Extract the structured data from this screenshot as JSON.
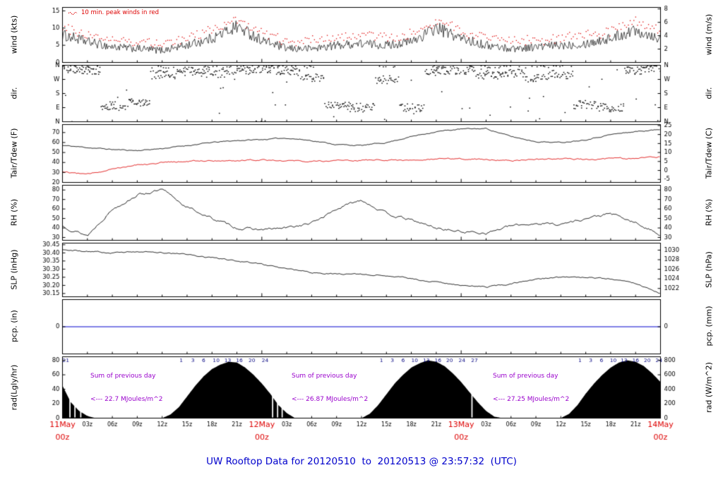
{
  "colors": {
    "red": "#dd0000",
    "blue_title": "#0000cc",
    "purple": "#9900cc",
    "navy": "#000080",
    "pcp_blue": "#0000cc",
    "series_black": "#000000"
  },
  "annotations": {
    "peak_note": "10 min. peak winds in red",
    "rad_sums": [
      {
        "label": "Sum of previous day",
        "value": "<--- 22.7 MJoules/m^2"
      },
      {
        "label": "Sum of previous day",
        "value": "<--- 26.87 MJoules/m^2"
      },
      {
        "label": "Sum of previous day",
        "value": "<--- 27.25 MJoules/m^2"
      }
    ],
    "rad_cum_ticks": [
      {
        "h": 0.4,
        "label": "21"
      },
      {
        "h": 14.3,
        "label": "1"
      },
      {
        "h": 15.7,
        "label": "3"
      },
      {
        "h": 17.0,
        "label": "6"
      },
      {
        "h": 18.5,
        "label": "10"
      },
      {
        "h": 19.9,
        "label": "13"
      },
      {
        "h": 21.3,
        "label": "16"
      },
      {
        "h": 22.8,
        "label": "20"
      },
      {
        "h": 24.4,
        "label": "24"
      },
      {
        "h": 38.4,
        "label": "1"
      },
      {
        "h": 39.7,
        "label": "3"
      },
      {
        "h": 41.0,
        "label": "6"
      },
      {
        "h": 42.4,
        "label": "10"
      },
      {
        "h": 43.8,
        "label": "13"
      },
      {
        "h": 45.2,
        "label": "16"
      },
      {
        "h": 46.6,
        "label": "20"
      },
      {
        "h": 48.1,
        "label": "24"
      },
      {
        "h": 49.6,
        "label": "27"
      },
      {
        "h": 62.3,
        "label": "1"
      },
      {
        "h": 63.6,
        "label": "3"
      },
      {
        "h": 64.9,
        "label": "6"
      },
      {
        "h": 66.3,
        "label": "10"
      },
      {
        "h": 67.6,
        "label": "13"
      },
      {
        "h": 69.0,
        "label": "16"
      },
      {
        "h": 70.4,
        "label": "20"
      },
      {
        "h": 71.8,
        "label": "24"
      }
    ]
  },
  "chart_data": {
    "type": "line",
    "title": "UW Rooftop Data for 20120510  to  20120513 @ 23:57:32  (UTC)",
    "x_axis": {
      "hours_span": 72,
      "minor_step_h": 3,
      "minor_labels": [
        "03z",
        "06z",
        "09z",
        "12z",
        "15z",
        "18z",
        "21z"
      ],
      "major": [
        {
          "h": 0,
          "date": "11May",
          "time": "00z"
        },
        {
          "h": 24,
          "date": "12May",
          "time": "00z"
        },
        {
          "h": 48,
          "date": "13May",
          "time": "00z"
        },
        {
          "h": 72,
          "date": "14May",
          "time": "00z"
        }
      ]
    },
    "panels": [
      {
        "id": "wind",
        "ylabel_left": "wind (kts)",
        "ylabel_right": "wind (m/s)",
        "range": [
          0,
          16
        ],
        "left_ticks": [
          {
            "v": 15,
            "label": "15"
          },
          {
            "v": 10,
            "label": "10"
          },
          {
            "v": 5,
            "label": "5"
          },
          {
            "v": 0,
            "label": "0"
          }
        ],
        "right_ticks": [
          {
            "v": 15.55,
            "label": "8"
          },
          {
            "v": 11.66,
            "label": "6"
          },
          {
            "v": 7.78,
            "label": "4"
          },
          {
            "v": 3.89,
            "label": "2"
          }
        ],
        "series": [
          {
            "name": "wind_speed_kts",
            "step_h": 3,
            "values": [
              8,
              6,
              4.5,
              4,
              3.5,
              5,
              7,
              10.5,
              6.5,
              4,
              4,
              5,
              5.5,
              5,
              6,
              10,
              7,
              5,
              4,
              4.5,
              5,
              5.5,
              7,
              9.5,
              7
            ]
          },
          {
            "name": "peak_wind_kts",
            "style": "peak_dots",
            "offset_kts": 2.2
          }
        ]
      },
      {
        "id": "dir",
        "ylabel_left": "dir.",
        "ylabel_right": "dir.",
        "range": [
          0,
          360
        ],
        "left_ticks": [
          {
            "v": 360,
            "label": "N"
          },
          {
            "v": 270,
            "label": "W"
          },
          {
            "v": 180,
            "label": "S"
          },
          {
            "v": 90,
            "label": "E"
          },
          {
            "v": 0,
            "label": "N"
          }
        ],
        "right_ticks": [
          {
            "v": 360,
            "label": "N"
          },
          {
            "v": 270,
            "label": "W"
          },
          {
            "v": 180,
            "label": "S"
          },
          {
            "v": 90,
            "label": "E"
          },
          {
            "v": 0,
            "label": "N"
          }
        ],
        "series": [
          {
            "name": "wind_direction_deg",
            "step_h": 3,
            "values": [
              340,
              330,
              100,
              120,
              300,
              320,
              310,
              330,
              340,
              320,
              280,
              100,
              90,
              270,
              90,
              320,
              330,
              300,
              310,
              280,
              300,
              110,
              90,
              330,
              340
            ]
          }
        ]
      },
      {
        "id": "temp",
        "ylabel_left": "Tair/Tdew (F)",
        "ylabel_right": "Tair/Tdew (C)",
        "range": [
          20,
          78
        ],
        "left_ticks": [
          {
            "v": 70,
            "label": "70"
          },
          {
            "v": 60,
            "label": "60"
          },
          {
            "v": 50,
            "label": "50"
          },
          {
            "v": 40,
            "label": "40"
          },
          {
            "v": 30,
            "label": "30"
          },
          {
            "v": 20,
            "label": "20"
          }
        ],
        "right_ticks": [
          {
            "v": 77,
            "label": "25"
          },
          {
            "v": 68,
            "label": "20"
          },
          {
            "v": 59,
            "label": "15"
          },
          {
            "v": 50,
            "label": "10"
          },
          {
            "v": 41,
            "label": "5"
          },
          {
            "v": 32,
            "label": "0"
          },
          {
            "v": 23,
            "label": "-5"
          }
        ],
        "series": [
          {
            "name": "air_temp_f",
            "step_h": 3,
            "values": [
              57,
              55,
              53,
              52,
              54,
              57,
              60,
              62,
              63,
              64.5,
              62,
              58,
              57,
              60,
              66,
              71,
              73.5,
              74,
              66,
              61,
              60,
              63,
              68,
              71,
              73
            ]
          },
          {
            "name": "dewpoint_f",
            "step_h": 3,
            "values": [
              31,
              28,
              34,
              38,
              40,
              41,
              42,
              42,
              43,
              42,
              41,
              42,
              42,
              43,
              42,
              43,
              44,
              43,
              42,
              43,
              44,
              43,
              44,
              44,
              46
            ]
          }
        ]
      },
      {
        "id": "rh",
        "ylabel_left": "RH (%)",
        "ylabel_right": "RH (%)",
        "range": [
          27,
          85
        ],
        "left_ticks": [
          {
            "v": 80,
            "label": "80"
          },
          {
            "v": 70,
            "label": "70"
          },
          {
            "v": 60,
            "label": "60"
          },
          {
            "v": 50,
            "label": "50"
          },
          {
            "v": 40,
            "label": "40"
          },
          {
            "v": 30,
            "label": "30"
          }
        ],
        "right_ticks": [
          {
            "v": 80,
            "label": "80"
          },
          {
            "v": 70,
            "label": "70"
          },
          {
            "v": 60,
            "label": "60"
          },
          {
            "v": 50,
            "label": "50"
          },
          {
            "v": 40,
            "label": "40"
          },
          {
            "v": 30,
            "label": "30"
          }
        ],
        "series": [
          {
            "name": "relative_humidity_pct",
            "step_h": 3,
            "values": [
              42,
              32,
              60,
              75,
              80,
              62,
              50,
              40,
              38,
              40,
              45,
              60,
              70,
              55,
              48,
              40,
              36,
              35,
              42,
              45,
              44,
              50,
              55,
              45,
              33
            ]
          }
        ]
      },
      {
        "id": "slp",
        "ylabel_left": "SLP (inHg)",
        "ylabel_right": "SLP (hPa)",
        "range": [
          30.13,
          30.46
        ],
        "left_ticks": [
          {
            "v": 30.45,
            "label": "30.45"
          },
          {
            "v": 30.4,
            "label": "30.40"
          },
          {
            "v": 30.35,
            "label": "30.35"
          },
          {
            "v": 30.3,
            "label": "30.30"
          },
          {
            "v": 30.25,
            "label": "30.25"
          },
          {
            "v": 30.2,
            "label": "30.20"
          },
          {
            "v": 30.15,
            "label": "30.15"
          }
        ],
        "right_ticks": [
          {
            "v": 30.417,
            "label": "1030"
          },
          {
            "v": 30.358,
            "label": "1028"
          },
          {
            "v": 30.299,
            "label": "1026"
          },
          {
            "v": 30.24,
            "label": "1024"
          },
          {
            "v": 30.181,
            "label": "1022"
          }
        ],
        "series": [
          {
            "name": "sea_level_pressure_inhg",
            "step_h": 3,
            "values": [
              30.42,
              30.41,
              30.4,
              30.41,
              30.4,
              30.39,
              30.37,
              30.35,
              30.33,
              30.3,
              30.28,
              30.27,
              30.27,
              30.26,
              30.24,
              30.22,
              30.2,
              30.19,
              30.21,
              30.24,
              30.25,
              30.25,
              30.24,
              30.21,
              30.15
            ]
          }
        ]
      },
      {
        "id": "pcp",
        "ylabel_left": "pcp. (in)",
        "ylabel_right": "pcp. (mm)",
        "range": [
          -1,
          1
        ],
        "left_ticks": [
          {
            "v": 0,
            "label": "0"
          }
        ],
        "right_ticks": [
          {
            "v": 0,
            "label": "0"
          }
        ],
        "series": [
          {
            "name": "precip_in",
            "style": "flat_zero"
          }
        ]
      },
      {
        "id": "rad",
        "ylabel_left": "rad(Lgly/hr)",
        "ylabel_right": "rad (W/m^2)",
        "range": [
          0,
          85
        ],
        "left_ticks": [
          {
            "v": 80,
            "label": "80"
          },
          {
            "v": 60,
            "label": "60"
          },
          {
            "v": 40,
            "label": "40"
          },
          {
            "v": 20,
            "label": "20"
          },
          {
            "v": 0,
            "label": "0"
          }
        ],
        "right_ticks": [
          {
            "v": 80,
            "label": "800"
          },
          {
            "v": 60,
            "label": "600"
          },
          {
            "v": 40,
            "label": "400"
          },
          {
            "v": 20,
            "label": "200"
          },
          {
            "v": 0,
            "label": "0"
          }
        ],
        "series": [
          {
            "name": "solar_radiation_lgly_hr",
            "step_h": 1,
            "fill": true,
            "dropout_hours": [
              0.9,
              1.5,
              2.2,
              25.3,
              25.9,
              26.45,
              49.3
            ],
            "values": [
              45,
              22,
              10,
              3,
              0,
              0,
              0,
              0,
              0,
              0,
              0,
              0,
              0,
              5,
              15,
              30,
              45,
              58,
              68,
              74,
              78,
              77,
              70,
              60,
              48,
              34,
              18,
              7,
              0,
              0,
              0,
              0,
              0,
              0,
              0,
              0,
              0,
              6,
              18,
              33,
              48,
              60,
              70,
              76,
              80,
              78,
              72,
              62,
              50,
              36,
              22,
              10,
              2,
              0,
              0,
              0,
              0,
              0,
              0,
              0,
              0,
              6,
              18,
              34,
              48,
              60,
              70,
              77,
              80,
              78,
              72,
              62,
              50
            ]
          }
        ]
      }
    ]
  }
}
